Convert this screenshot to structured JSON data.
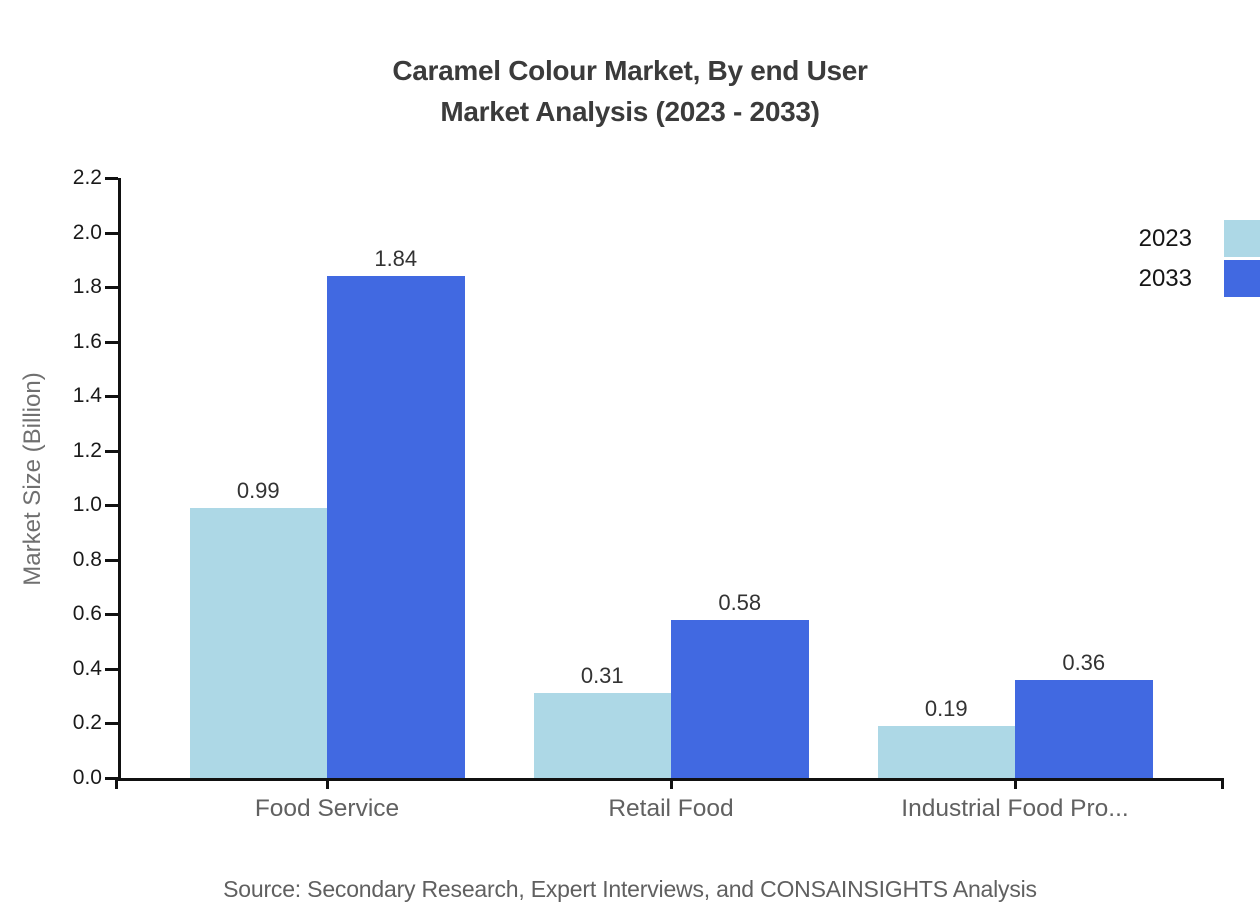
{
  "header": {
    "title_line1": "Caramel Colour Market, By end User",
    "title_line2": "Market Analysis (2023 - 2033)"
  },
  "axes": {
    "y_label": "Market Size (Billion)"
  },
  "footer": {
    "source": "Source: Secondary Research, Expert Interviews, and CONSAINSIGHTS Analysis"
  },
  "colors": {
    "series_2023": "#ADD8E6",
    "series_2033": "#4169E1",
    "axis": "#111111",
    "title_text": "#3b3b3b",
    "category_text": "#616161",
    "source_text": "#606060"
  },
  "chart_data": {
    "type": "bar",
    "title": "Caramel Colour Market, By end User Market Analysis (2023 - 2033)",
    "categories": [
      "Food Service",
      "Retail Food",
      "Industrial Food Pro..."
    ],
    "series": [
      {
        "name": "2023",
        "color": "#ADD8E6",
        "values": [
          0.99,
          0.31,
          0.19
        ]
      },
      {
        "name": "2033",
        "color": "#4169E1",
        "values": [
          1.84,
          0.58,
          0.36
        ]
      }
    ],
    "value_labels": [
      [
        "0.99",
        "0.31",
        "0.19"
      ],
      [
        "1.84",
        "0.58",
        "0.36"
      ]
    ],
    "xlabel": "",
    "ylabel": "Market Size (Billion)",
    "ylim": [
      0.0,
      2.2
    ],
    "yticks": [
      0.0,
      0.2,
      0.4,
      0.6,
      0.8,
      1.0,
      1.2,
      1.4,
      1.6,
      1.8,
      2.0,
      2.2
    ],
    "grid": false,
    "legend_position": "top-right",
    "source": "Source: Secondary Research, Expert Interviews, and CONSAINSIGHTS Analysis"
  }
}
